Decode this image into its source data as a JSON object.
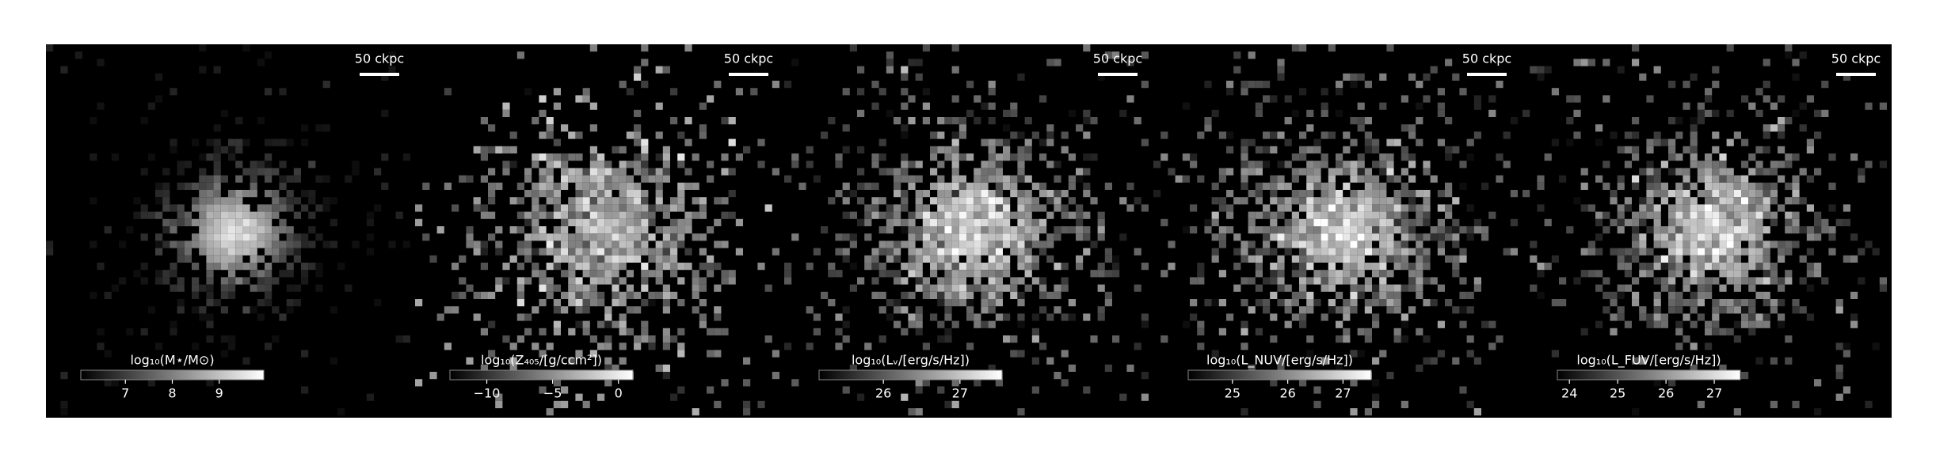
{
  "chart_data": [
    {
      "type": "image",
      "colorbar_label": "log₁₀(M⋆/M⊙)",
      "clim": [
        6.05,
        9.95
      ],
      "cticks": [
        7,
        8,
        9
      ],
      "scalebar_label": "50 ckpc"
    },
    {
      "type": "image",
      "colorbar_label": "log₁₀(Z₄₀₅/[g/ccm²])",
      "clim": [
        -12.8,
        1.1
      ],
      "cticks": [
        {
          "value": -10,
          "label": "−10"
        },
        {
          "value": -5,
          "label": "−5"
        },
        0
      ],
      "scalebar_label": "50 ckpc"
    },
    {
      "type": "image",
      "colorbar_label": "log₁₀(Lᵥ/[erg/s/Hz])",
      "clim": [
        25.16,
        27.55
      ],
      "cticks": [
        26,
        27
      ],
      "scalebar_label": "50 ckpc"
    },
    {
      "type": "image",
      "colorbar_label": "log₁₀(L_NUV/[erg/s/Hz])",
      "clim": [
        24.2,
        27.51
      ],
      "cticks": [
        25,
        26,
        27
      ],
      "scalebar_label": "50 ckpc"
    },
    {
      "type": "image",
      "colorbar_label": "log₁₀(L_FUV/[erg/s/Hz])",
      "clim": [
        23.75,
        27.54
      ],
      "cticks": [
        24,
        25,
        26,
        27
      ],
      "scalebar_label": "50 ckpc"
    }
  ]
}
